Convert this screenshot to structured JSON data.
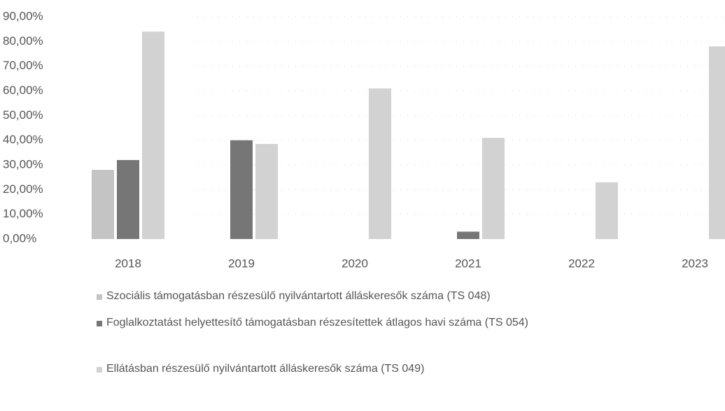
{
  "chart_data": {
    "type": "bar",
    "categories": [
      "2018",
      "2019",
      "2020",
      "2021",
      "2022",
      "2023"
    ],
    "series": [
      {
        "name": "Szociális támogatásban részesülő nyilvántartott álláskeresők száma (TS 048)",
        "color": "#c4c4c4",
        "values": [
          28,
          null,
          null,
          null,
          null,
          null
        ]
      },
      {
        "name": "Foglalkoztatást helyettesítő támogatásban részesítettek átlagos havi száma (TS 054)",
        "color": "#767676",
        "values": [
          32,
          40,
          null,
          3,
          null,
          null
        ]
      },
      {
        "name": "Ellátásban részesülő nyilvántartott álláskeresők száma (TS 049)",
        "color": "#d2d2d2",
        "values": [
          84,
          38.5,
          61,
          41,
          23,
          78
        ]
      }
    ],
    "ylim": [
      0,
      90
    ],
    "yticks": [
      {
        "value": 0,
        "label": "0,00%"
      },
      {
        "value": 10,
        "label": "10,00%"
      },
      {
        "value": 20,
        "label": "20,00%"
      },
      {
        "value": 30,
        "label": "30,00%"
      },
      {
        "value": 40,
        "label": "40,00%"
      },
      {
        "value": 50,
        "label": "50,00%"
      },
      {
        "value": 60,
        "label": "60,00%"
      },
      {
        "value": 70,
        "label": "70,00%"
      },
      {
        "value": 80,
        "label": "80,00%"
      },
      {
        "value": 90,
        "label": "90,00%"
      }
    ],
    "grid": true
  }
}
